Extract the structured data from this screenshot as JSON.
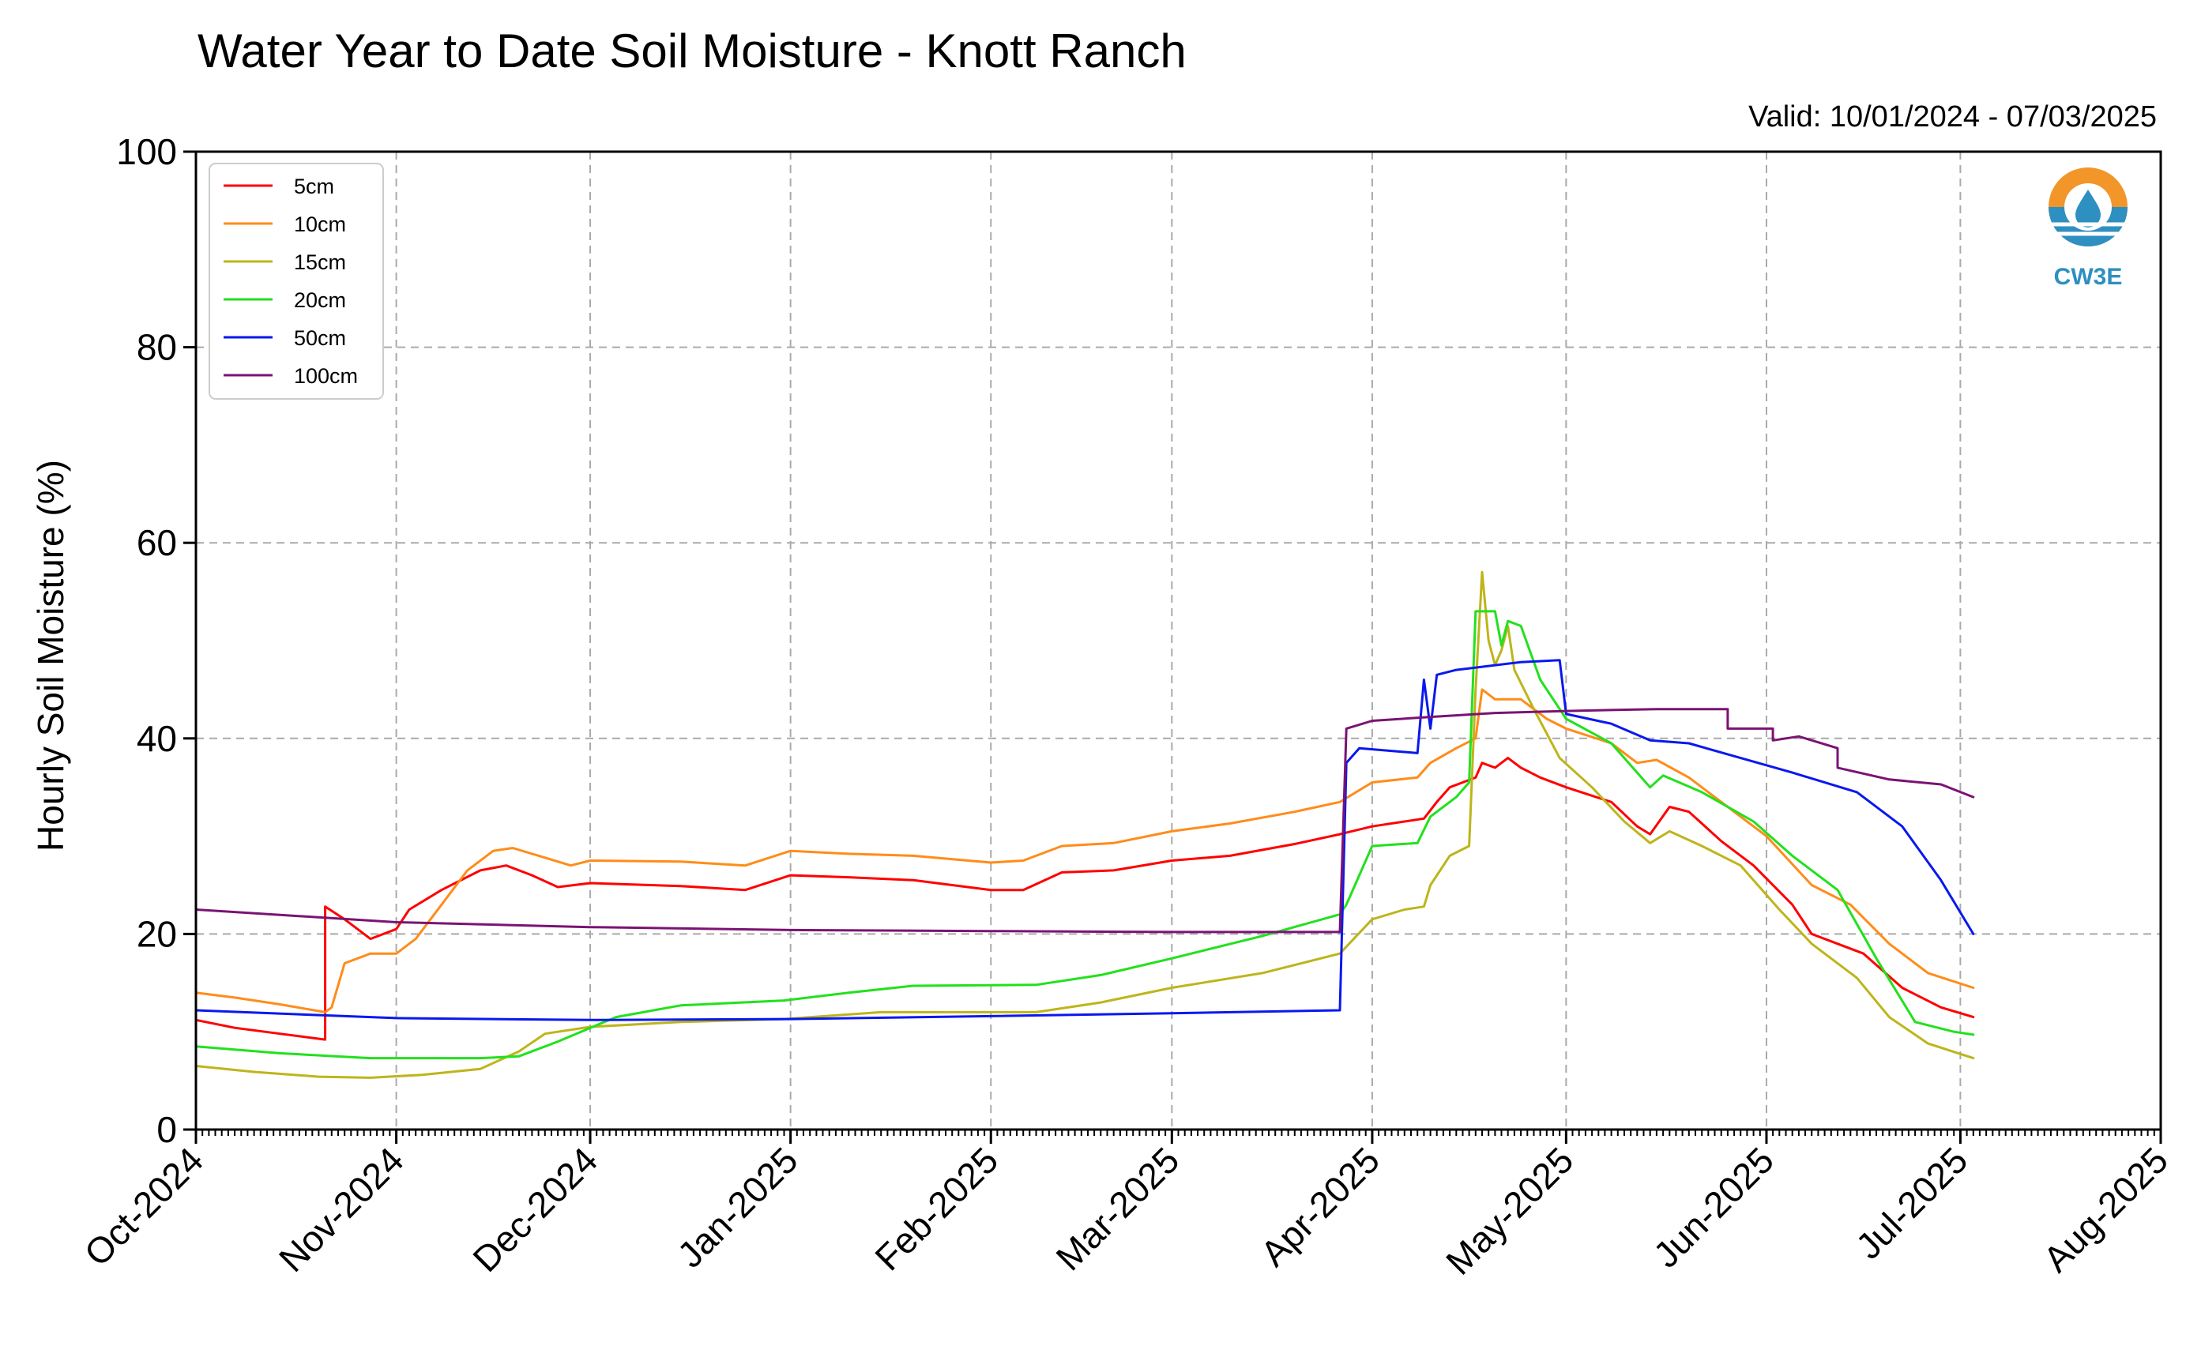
{
  "chart_data": {
    "type": "line",
    "title": "Water Year to Date Soil Moisture - Knott Ranch",
    "subtitle": "Valid: 10/01/2024 - 07/03/2025",
    "ylabel": "Hourly Soil Moisture (%)",
    "xlabel": "",
    "ylim": [
      0,
      100
    ],
    "xlim": [
      "2024-10-01",
      "2025-08-01"
    ],
    "y_ticks": [
      0,
      20,
      40,
      60,
      80,
      100
    ],
    "x_ticks": [
      {
        "date": "2024-10-01",
        "label": "Oct-2024"
      },
      {
        "date": "2024-11-01",
        "label": "Nov-2024"
      },
      {
        "date": "2024-12-01",
        "label": "Dec-2024"
      },
      {
        "date": "2025-01-01",
        "label": "Jan-2025"
      },
      {
        "date": "2025-02-01",
        "label": "Feb-2025"
      },
      {
        "date": "2025-03-01",
        "label": "Mar-2025"
      },
      {
        "date": "2025-04-01",
        "label": "Apr-2025"
      },
      {
        "date": "2025-05-01",
        "label": "May-2025"
      },
      {
        "date": "2025-06-01",
        "label": "Jun-2025"
      },
      {
        "date": "2025-07-01",
        "label": "Jul-2025"
      },
      {
        "date": "2025-08-01",
        "label": "Aug-2025"
      }
    ],
    "grid": true,
    "legend_position": "top-left",
    "logo_text": "CW3E",
    "series": [
      {
        "name": "5cm",
        "color": "#ff0000",
        "points": [
          [
            "2024-10-01",
            11.2
          ],
          [
            "2024-10-07",
            10.4
          ],
          [
            "2024-10-14",
            9.8
          ],
          [
            "2024-10-21",
            9.2
          ],
          [
            "2024-10-21",
            22.8
          ],
          [
            "2024-10-24",
            21.5
          ],
          [
            "2024-10-28",
            19.5
          ],
          [
            "2024-11-01",
            20.5
          ],
          [
            "2024-11-03",
            22.5
          ],
          [
            "2024-11-08",
            24.5
          ],
          [
            "2024-11-14",
            26.5
          ],
          [
            "2024-11-18",
            27.0
          ],
          [
            "2024-11-22",
            26.0
          ],
          [
            "2024-11-26",
            24.8
          ],
          [
            "2024-12-01",
            25.2
          ],
          [
            "2024-12-15",
            24.9
          ],
          [
            "2024-12-25",
            24.5
          ],
          [
            "2025-01-01",
            26.0
          ],
          [
            "2025-01-10",
            25.8
          ],
          [
            "2025-01-20",
            25.5
          ],
          [
            "2025-02-01",
            24.5
          ],
          [
            "2025-02-06",
            24.5
          ],
          [
            "2025-02-12",
            26.3
          ],
          [
            "2025-02-20",
            26.5
          ],
          [
            "2025-03-01",
            27.5
          ],
          [
            "2025-03-10",
            28.0
          ],
          [
            "2025-03-20",
            29.2
          ],
          [
            "2025-03-27",
            30.2
          ],
          [
            "2025-04-01",
            31.0
          ],
          [
            "2025-04-06",
            31.5
          ],
          [
            "2025-04-09",
            31.8
          ],
          [
            "2025-04-11",
            33.5
          ],
          [
            "2025-04-13",
            35.0
          ],
          [
            "2025-04-15",
            35.5
          ],
          [
            "2025-04-17",
            36.0
          ],
          [
            "2025-04-18",
            37.5
          ],
          [
            "2025-04-20",
            37.0
          ],
          [
            "2025-04-22",
            38.0
          ],
          [
            "2025-04-24",
            37.0
          ],
          [
            "2025-04-27",
            36.0
          ],
          [
            "2025-05-01",
            35.0
          ],
          [
            "2025-05-08",
            33.5
          ],
          [
            "2025-05-12",
            31.0
          ],
          [
            "2025-05-14",
            30.2
          ],
          [
            "2025-05-17",
            33.0
          ],
          [
            "2025-05-20",
            32.5
          ],
          [
            "2025-05-25",
            29.5
          ],
          [
            "2025-05-30",
            27.0
          ],
          [
            "2025-06-05",
            23.0
          ],
          [
            "2025-06-08",
            20.0
          ],
          [
            "2025-06-12",
            19.0
          ],
          [
            "2025-06-16",
            18.0
          ],
          [
            "2025-06-22",
            14.5
          ],
          [
            "2025-06-28",
            12.5
          ],
          [
            "2025-07-03",
            11.5
          ]
        ]
      },
      {
        "name": "10cm",
        "color": "#ff8c1a",
        "points": [
          [
            "2024-10-01",
            14.0
          ],
          [
            "2024-10-07",
            13.5
          ],
          [
            "2024-10-14",
            12.8
          ],
          [
            "2024-10-21",
            12.0
          ],
          [
            "2024-10-22",
            12.5
          ],
          [
            "2024-10-24",
            17.0
          ],
          [
            "2024-10-28",
            18.0
          ],
          [
            "2024-11-01",
            18.0
          ],
          [
            "2024-11-04",
            19.5
          ],
          [
            "2024-11-08",
            23.0
          ],
          [
            "2024-11-12",
            26.5
          ],
          [
            "2024-11-16",
            28.5
          ],
          [
            "2024-11-19",
            28.8
          ],
          [
            "2024-11-24",
            27.8
          ],
          [
            "2024-11-28",
            27.0
          ],
          [
            "2024-12-01",
            27.5
          ],
          [
            "2024-12-15",
            27.4
          ],
          [
            "2024-12-25",
            27.0
          ],
          [
            "2025-01-01",
            28.5
          ],
          [
            "2025-01-10",
            28.2
          ],
          [
            "2025-01-20",
            28.0
          ],
          [
            "2025-02-01",
            27.3
          ],
          [
            "2025-02-06",
            27.5
          ],
          [
            "2025-02-12",
            29.0
          ],
          [
            "2025-02-20",
            29.3
          ],
          [
            "2025-03-01",
            30.5
          ],
          [
            "2025-03-10",
            31.3
          ],
          [
            "2025-03-20",
            32.5
          ],
          [
            "2025-03-27",
            33.5
          ],
          [
            "2025-04-01",
            35.5
          ],
          [
            "2025-04-08",
            36.0
          ],
          [
            "2025-04-10",
            37.5
          ],
          [
            "2025-04-14",
            39.0
          ],
          [
            "2025-04-17",
            40.0
          ],
          [
            "2025-04-18",
            45.0
          ],
          [
            "2025-04-20",
            44.0
          ],
          [
            "2025-04-24",
            44.0
          ],
          [
            "2025-04-28",
            42.0
          ],
          [
            "2025-05-01",
            41.0
          ],
          [
            "2025-05-08",
            39.5
          ],
          [
            "2025-05-12",
            37.5
          ],
          [
            "2025-05-15",
            37.8
          ],
          [
            "2025-05-20",
            36.0
          ],
          [
            "2025-05-27",
            32.5
          ],
          [
            "2025-06-01",
            30.0
          ],
          [
            "2025-06-08",
            25.0
          ],
          [
            "2025-06-14",
            23.0
          ],
          [
            "2025-06-20",
            19.0
          ],
          [
            "2025-06-26",
            16.0
          ],
          [
            "2025-07-03",
            14.5
          ]
        ]
      },
      {
        "name": "15cm",
        "color": "#bdb51b",
        "points": [
          [
            "2024-10-01",
            6.5
          ],
          [
            "2024-10-10",
            5.9
          ],
          [
            "2024-10-20",
            5.4
          ],
          [
            "2024-10-28",
            5.3
          ],
          [
            "2024-11-05",
            5.6
          ],
          [
            "2024-11-14",
            6.2
          ],
          [
            "2024-11-20",
            8.0
          ],
          [
            "2024-11-24",
            9.8
          ],
          [
            "2024-12-01",
            10.5
          ],
          [
            "2024-12-15",
            11.0
          ],
          [
            "2024-12-31",
            11.3
          ],
          [
            "2025-01-15",
            12.0
          ],
          [
            "2025-02-01",
            12.0
          ],
          [
            "2025-02-08",
            12.0
          ],
          [
            "2025-02-18",
            13.0
          ],
          [
            "2025-03-01",
            14.5
          ],
          [
            "2025-03-15",
            16.0
          ],
          [
            "2025-03-27",
            18.0
          ],
          [
            "2025-04-01",
            21.5
          ],
          [
            "2025-04-06",
            22.5
          ],
          [
            "2025-04-09",
            22.8
          ],
          [
            "2025-04-10",
            25.0
          ],
          [
            "2025-04-13",
            28.0
          ],
          [
            "2025-04-16",
            29.0
          ],
          [
            "2025-04-17",
            45.0
          ],
          [
            "2025-04-18",
            57.0
          ],
          [
            "2025-04-19",
            50.0
          ],
          [
            "2025-04-20",
            47.5
          ],
          [
            "2025-04-21",
            49.0
          ],
          [
            "2025-04-22",
            51.5
          ],
          [
            "2025-04-23",
            47.0
          ],
          [
            "2025-04-26",
            43.0
          ],
          [
            "2025-04-30",
            38.0
          ],
          [
            "2025-05-05",
            35.0
          ],
          [
            "2025-05-10",
            31.5
          ],
          [
            "2025-05-14",
            29.3
          ],
          [
            "2025-05-17",
            30.5
          ],
          [
            "2025-05-22",
            29.0
          ],
          [
            "2025-05-28",
            27.0
          ],
          [
            "2025-06-03",
            22.5
          ],
          [
            "2025-06-08",
            19.0
          ],
          [
            "2025-06-15",
            15.5
          ],
          [
            "2025-06-20",
            11.5
          ],
          [
            "2025-06-26",
            8.8
          ],
          [
            "2025-07-03",
            7.3
          ]
        ]
      },
      {
        "name": "20cm",
        "color": "#22e11d",
        "points": [
          [
            "2024-10-01",
            8.5
          ],
          [
            "2024-10-14",
            7.8
          ],
          [
            "2024-10-28",
            7.3
          ],
          [
            "2024-11-14",
            7.3
          ],
          [
            "2024-11-20",
            7.5
          ],
          [
            "2024-11-26",
            9.0
          ],
          [
            "2024-12-05",
            11.5
          ],
          [
            "2024-12-15",
            12.7
          ],
          [
            "2024-12-31",
            13.2
          ],
          [
            "2025-01-10",
            14.0
          ],
          [
            "2025-01-20",
            14.7
          ],
          [
            "2025-02-08",
            14.8
          ],
          [
            "2025-02-18",
            15.8
          ],
          [
            "2025-03-01",
            17.5
          ],
          [
            "2025-03-15",
            19.8
          ],
          [
            "2025-03-27",
            22.0
          ],
          [
            "2025-03-28",
            23.0
          ],
          [
            "2025-04-01",
            29.0
          ],
          [
            "2025-04-08",
            29.3
          ],
          [
            "2025-04-10",
            32.0
          ],
          [
            "2025-04-14",
            34.0
          ],
          [
            "2025-04-16",
            35.5
          ],
          [
            "2025-04-17",
            53.0
          ],
          [
            "2025-04-20",
            53.0
          ],
          [
            "2025-04-21",
            49.5
          ],
          [
            "2025-04-22",
            52.0
          ],
          [
            "2025-04-24",
            51.5
          ],
          [
            "2025-04-27",
            46.0
          ],
          [
            "2025-05-01",
            42.0
          ],
          [
            "2025-05-08",
            39.5
          ],
          [
            "2025-05-14",
            35.0
          ],
          [
            "2025-05-16",
            36.2
          ],
          [
            "2025-05-22",
            34.5
          ],
          [
            "2025-05-30",
            31.5
          ],
          [
            "2025-06-05",
            28.0
          ],
          [
            "2025-06-12",
            24.5
          ],
          [
            "2025-06-18",
            17.5
          ],
          [
            "2025-06-24",
            11.0
          ],
          [
            "2025-06-30",
            10.0
          ],
          [
            "2025-07-03",
            9.7
          ]
        ]
      },
      {
        "name": "50cm",
        "color": "#0a18ee",
        "points": [
          [
            "2024-10-01",
            12.2
          ],
          [
            "2024-11-01",
            11.4
          ],
          [
            "2024-12-01",
            11.2
          ],
          [
            "2025-01-01",
            11.3
          ],
          [
            "2025-02-01",
            11.6
          ],
          [
            "2025-03-01",
            11.9
          ],
          [
            "2025-03-27",
            12.2
          ],
          [
            "2025-03-28",
            37.5
          ],
          [
            "2025-03-30",
            39.0
          ],
          [
            "2025-04-08",
            38.5
          ],
          [
            "2025-04-09",
            46.0
          ],
          [
            "2025-04-10",
            41.0
          ],
          [
            "2025-04-11",
            46.5
          ],
          [
            "2025-04-14",
            47.0
          ],
          [
            "2025-04-24",
            47.8
          ],
          [
            "2025-04-30",
            48.0
          ],
          [
            "2025-05-01",
            42.5
          ],
          [
            "2025-05-08",
            41.5
          ],
          [
            "2025-05-14",
            39.8
          ],
          [
            "2025-05-20",
            39.5
          ],
          [
            "2025-05-28",
            38.0
          ],
          [
            "2025-06-05",
            36.5
          ],
          [
            "2025-06-15",
            34.5
          ],
          [
            "2025-06-22",
            31.0
          ],
          [
            "2025-06-28",
            25.5
          ],
          [
            "2025-07-03",
            20.0
          ]
        ]
      },
      {
        "name": "100cm",
        "color": "#7b1373",
        "points": [
          [
            "2024-10-01",
            22.5
          ],
          [
            "2024-11-01",
            21.2
          ],
          [
            "2024-12-01",
            20.7
          ],
          [
            "2025-01-01",
            20.4
          ],
          [
            "2025-02-01",
            20.3
          ],
          [
            "2025-03-01",
            20.2
          ],
          [
            "2025-03-27",
            20.2
          ],
          [
            "2025-03-28",
            41.0
          ],
          [
            "2025-04-01",
            41.8
          ],
          [
            "2025-04-10",
            42.2
          ],
          [
            "2025-04-20",
            42.6
          ],
          [
            "2025-05-01",
            42.8
          ],
          [
            "2025-05-15",
            43.0
          ],
          [
            "2025-05-26",
            43.0
          ],
          [
            "2025-05-26",
            41.0
          ],
          [
            "2025-06-02",
            41.0
          ],
          [
            "2025-06-02",
            39.8
          ],
          [
            "2025-06-06",
            40.2
          ],
          [
            "2025-06-12",
            39.0
          ],
          [
            "2025-06-12",
            37.0
          ],
          [
            "2025-06-20",
            35.8
          ],
          [
            "2025-06-28",
            35.3
          ],
          [
            "2025-07-03",
            34.0
          ]
        ]
      }
    ]
  }
}
